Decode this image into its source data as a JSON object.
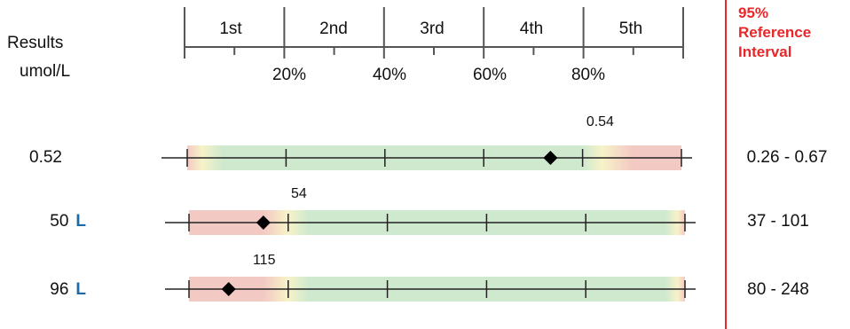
{
  "header": {
    "results_label": "Results",
    "units_label": "umol/L",
    "quintiles": [
      "1st",
      "2nd",
      "3rd",
      "4th",
      "5th"
    ],
    "percentiles": [
      "20%",
      "40%",
      "60%",
      "80%"
    ],
    "reference_title": [
      "95%",
      "Reference",
      "Interval"
    ]
  },
  "colors": {
    "red": "#e8272a",
    "flag_blue": "#1a6aa8",
    "green_band": "#cfe9cf",
    "red_band": "#f3c9c4",
    "yellow_band": "#f7f3c8"
  },
  "rows": [
    {
      "result": "0.52",
      "flag": "",
      "marker_label": "0.54",
      "reference": "0.26 - 0.67"
    },
    {
      "result": "50",
      "flag": "L",
      "marker_label": "54",
      "reference": "37 - 101"
    },
    {
      "result": "96",
      "flag": "L",
      "marker_label": "115",
      "reference": "80 - 248"
    }
  ],
  "chart_data": {
    "type": "scatter",
    "x_unit": "percentile",
    "xlim": [
      0,
      100
    ],
    "ticks": [
      0,
      20,
      40,
      60,
      80,
      100
    ],
    "series": [
      {
        "values": [
          73.5
        ],
        "band": "high-red"
      },
      {
        "values": [
          15
        ],
        "band": "low-red"
      },
      {
        "values": [
          8
        ],
        "band": "low-red"
      }
    ]
  }
}
